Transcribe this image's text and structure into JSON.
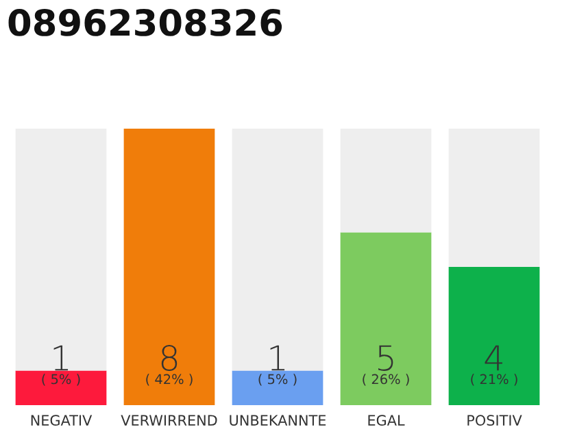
{
  "chart_data": {
    "type": "bar",
    "title": "08962308326",
    "stacked": true,
    "categories": [
      "NEGATIV",
      "VERWIRREND",
      "UNBEKANNTE",
      "EGAL",
      "POSITIV"
    ],
    "series": [
      {
        "colors": [
          "#fd1a3c",
          "#f07d0a",
          "#6a9ff0",
          "#7dcb5f",
          "#0db14b"
        ],
        "values": [
          1,
          8,
          1,
          5,
          4
        ],
        "value_labels": [
          "1",
          "8",
          "1",
          "5",
          "4"
        ]
      },
      {
        "color": "#eeeeee",
        "values": [
          7,
          0,
          7,
          3,
          4
        ]
      }
    ],
    "ylim": [
      0,
      8
    ],
    "tick_labels": "x",
    "annotations": [
      "( 5% )",
      "( 42% )",
      "( 5% )",
      "( 26% )",
      "( 21% )"
    ],
    "grid": false
  }
}
